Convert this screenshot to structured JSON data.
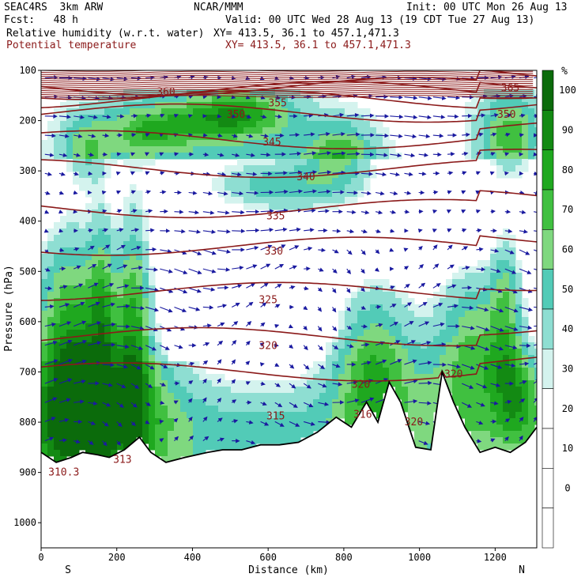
{
  "header": {
    "model": "SEAC4RS  3km ARW",
    "org": "NCAR/MMM",
    "init": "Init: 00 UTC Mon 26 Aug 13",
    "fcst": "Fcst:   48 h",
    "valid": "Valid: 00 UTC Wed 28 Aug 13 (19 CDT Tue 27 Aug 13)",
    "field1": "Relative humidity (w.r.t. water)",
    "xy1": "XY= 413.5, 36.1 to 457.1,471.3",
    "field2": "Potential temperature",
    "xy2": "XY= 413.5, 36.1 to 457.1,471.3"
  },
  "colors": {
    "theta_contour": "#8b1a1a",
    "wind_vector": "#1a1aa0",
    "terrain_line": "#000000",
    "rh_scale": [
      "#ffffff",
      "#d4f3ee",
      "#8eded2",
      "#52cbb7",
      "#7fd87f",
      "#40c040",
      "#1fa81f",
      "#138a13",
      "#0b6b0b"
    ]
  },
  "chart_data": {
    "type": "heatmap",
    "title": "Relative humidity (w.r.t. water) / Potential temperature cross section",
    "xlabel": "Distance (km)",
    "ylabel": "Pressure (hPa)",
    "xlim": [
      0,
      1310
    ],
    "ylim": [
      1050,
      100
    ],
    "x_ticks": [
      0,
      200,
      400,
      600,
      800,
      1000,
      1200
    ],
    "y_ticks": [
      100,
      200,
      300,
      400,
      500,
      600,
      700,
      800,
      900,
      1000
    ],
    "x_endpoints": {
      "left": "S",
      "right": "N"
    },
    "colorbar": {
      "unit": "%",
      "ticks": [
        0,
        10,
        20,
        30,
        40,
        50,
        60,
        70,
        80,
        90,
        100
      ]
    },
    "theta_contours_K": [
      310,
      313,
      315,
      316,
      318,
      320,
      325,
      330,
      335,
      340,
      345,
      350,
      355,
      360,
      365
    ],
    "theta_labels": [
      {
        "value": "365",
        "x": 1240,
        "p": 135
      },
      {
        "value": "360",
        "x": 330,
        "p": 143
      },
      {
        "value": "355",
        "x": 625,
        "p": 165
      },
      {
        "value": "350",
        "x": 515,
        "p": 188
      },
      {
        "value": "350",
        "x": 1230,
        "p": 188
      },
      {
        "value": "345",
        "x": 610,
        "p": 243
      },
      {
        "value": "340",
        "x": 700,
        "p": 312
      },
      {
        "value": "335",
        "x": 620,
        "p": 390
      },
      {
        "value": "330",
        "x": 615,
        "p": 460
      },
      {
        "value": "325",
        "x": 600,
        "p": 557
      },
      {
        "value": "320",
        "x": 600,
        "p": 648
      },
      {
        "value": "320",
        "x": 845,
        "p": 725
      },
      {
        "value": "320",
        "x": 1090,
        "p": 705
      },
      {
        "value": "315",
        "x": 620,
        "p": 788
      },
      {
        "value": "316",
        "x": 850,
        "p": 785
      },
      {
        "value": "320",
        "x": 985,
        "p": 800
      },
      {
        "value": "313",
        "x": 215,
        "p": 875
      },
      {
        "value": "310.3",
        "x": 60,
        "p": 900
      }
    ],
    "terrain_surface_hPa": {
      "x": [
        0,
        40,
        80,
        110,
        150,
        180,
        220,
        260,
        290,
        330,
        380,
        440,
        480,
        530,
        580,
        630,
        680,
        730,
        780,
        820,
        860,
        890,
        920,
        950,
        990,
        1030,
        1060,
        1090,
        1120,
        1160,
        1200,
        1240,
        1280,
        1310
      ],
      "p": [
        860,
        880,
        870,
        860,
        865,
        870,
        855,
        830,
        860,
        880,
        870,
        860,
        855,
        855,
        845,
        845,
        840,
        820,
        790,
        810,
        760,
        800,
        720,
        760,
        850,
        855,
        700,
        760,
        810,
        860,
        850,
        860,
        840,
        810
      ]
    }
  }
}
